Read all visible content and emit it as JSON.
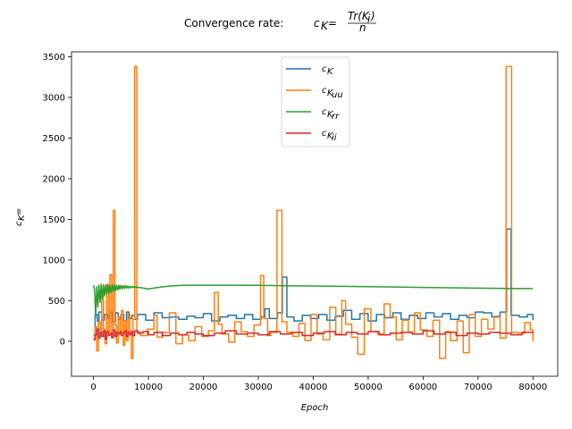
{
  "chart_data": {
    "type": "line",
    "title": "Convergence rate: c_K = Tr(K_i)/n",
    "title_parts": {
      "prefix": "Convergence rate: ",
      "lhs": "c",
      "lhs_sub": "K",
      "eq": " = ",
      "num": "Tr(K",
      "num_sub": "i",
      "num_close": ")",
      "den": "n"
    },
    "xlabel": "Epoch",
    "ylabel": "c_K =",
    "ylabel_parts": {
      "c": "c",
      "sub": "K",
      "eq": " ="
    },
    "xlim": [
      -4000,
      84500
    ],
    "ylim": [
      -430,
      3560
    ],
    "xticks": [
      0,
      10000,
      20000,
      30000,
      40000,
      50000,
      60000,
      70000,
      80000
    ],
    "xtick_labels": [
      "0",
      "10000",
      "20000",
      "30000",
      "40000",
      "50000",
      "60000",
      "70000",
      "80000"
    ],
    "yticks": [
      0,
      500,
      1000,
      1500,
      2000,
      2500,
      3000,
      3500
    ],
    "ytick_labels": [
      "0",
      "500",
      "1000",
      "1500",
      "2000",
      "2500",
      "3000",
      "3500"
    ],
    "grid": false,
    "legend_position": "top-center",
    "series": [
      {
        "name": "c_K",
        "label_main": "c",
        "label_sub": "K",
        "color": "#1f77b4",
        "step": true,
        "x": [
          0,
          300,
          700,
          1000,
          1500,
          2000,
          2500,
          3000,
          3500,
          4000,
          4500,
          5000,
          5500,
          6000,
          6500,
          7000,
          7500,
          8000,
          9500,
          11000,
          12500,
          14000,
          15500,
          17000,
          18500,
          20000,
          21500,
          23000,
          24500,
          26000,
          27500,
          29000,
          30500,
          31200,
          32000,
          33500,
          34400,
          35200,
          36500,
          38000,
          39500,
          41000,
          42500,
          44000,
          45500,
          47000,
          48500,
          50000,
          51500,
          53000,
          54500,
          56000,
          57500,
          59000,
          60500,
          62000,
          63500,
          65000,
          66500,
          68000,
          69500,
          71000,
          72500,
          74000,
          75200,
          76000,
          77500,
          79000,
          80000
        ],
        "y": [
          80,
          330,
          250,
          360,
          260,
          330,
          280,
          360,
          240,
          350,
          270,
          330,
          250,
          360,
          280,
          320,
          270,
          330,
          260,
          350,
          290,
          300,
          270,
          310,
          290,
          340,
          250,
          300,
          320,
          280,
          330,
          270,
          300,
          400,
          280,
          350,
          790,
          300,
          250,
          320,
          280,
          330,
          260,
          310,
          380,
          270,
          340,
          250,
          330,
          290,
          350,
          270,
          320,
          280,
          350,
          300,
          340,
          270,
          320,
          290,
          360,
          350,
          300,
          360,
          1380,
          320,
          300,
          330,
          260
        ]
      },
      {
        "name": "c_Kuu",
        "label_main": "c",
        "label_sub": "K",
        "label_subsub": "uu",
        "color": "#ff7f0e",
        "step": true,
        "x": [
          0,
          300,
          600,
          900,
          1200,
          1500,
          1800,
          2100,
          2400,
          2700,
          3000,
          3300,
          3600,
          3900,
          4200,
          4500,
          4800,
          5100,
          5400,
          5700,
          6000,
          6300,
          6600,
          6900,
          7200,
          7500,
          7900,
          8500,
          9800,
          11000,
          11600,
          12600,
          13800,
          15000,
          16200,
          17300,
          18500,
          19700,
          20900,
          22000,
          22700,
          23400,
          24600,
          25700,
          26900,
          28000,
          29200,
          30400,
          31000,
          31700,
          32300,
          33400,
          34300,
          35200,
          36300,
          37400,
          38500,
          39600,
          40700,
          41800,
          43000,
          44100,
          45200,
          45900,
          47000,
          48100,
          49300,
          50500,
          51700,
          52900,
          54000,
          55100,
          56200,
          57300,
          58400,
          59500,
          60700,
          61800,
          63000,
          64100,
          65000,
          66200,
          67300,
          68400,
          69500,
          70600,
          71800,
          72900,
          74000,
          75100,
          76100,
          77300,
          78500,
          79500,
          80000
        ],
        "y": [
          30,
          180,
          -120,
          240,
          60,
          620,
          150,
          -30,
          700,
          120,
          820,
          40,
          1610,
          200,
          -20,
          300,
          90,
          380,
          -50,
          250,
          10,
          340,
          110,
          -210,
          270,
          3380,
          120,
          70,
          150,
          320,
          50,
          110,
          350,
          -30,
          80,
          10,
          180,
          60,
          130,
          600,
          210,
          90,
          -10,
          240,
          120,
          60,
          200,
          810,
          280,
          70,
          110,
          1610,
          240,
          110,
          60,
          220,
          10,
          330,
          90,
          20,
          420,
          90,
          500,
          210,
          50,
          -160,
          400,
          120,
          90,
          460,
          300,
          20,
          260,
          110,
          350,
          140,
          60,
          260,
          -210,
          120,
          10,
          250,
          -140,
          330,
          60,
          270,
          150,
          310,
          40,
          3380,
          110,
          100,
          230,
          140,
          0
        ]
      },
      {
        "name": "c_Krr",
        "label_main": "c",
        "label_sub": "K",
        "label_subsub": "rr",
        "color": "#2ca02c",
        "step": false,
        "x": [
          0,
          200,
          400,
          600,
          800,
          1000,
          1200,
          1400,
          1600,
          1800,
          2000,
          2200,
          2400,
          2600,
          2800,
          3000,
          3200,
          3400,
          3600,
          3800,
          4000,
          4200,
          4400,
          4600,
          4800,
          5000,
          5200,
          5400,
          5600,
          5800,
          6000,
          6200,
          6400,
          6600,
          6800,
          7000,
          7200,
          7400,
          7600,
          7800,
          8000,
          8500,
          9000,
          9500,
          10000,
          12000,
          14000,
          16000,
          18000,
          20000,
          25000,
          30000,
          35000,
          40000,
          45000,
          50000,
          55000,
          60000,
          65000,
          70000,
          75000,
          80000
        ],
        "y": [
          690,
          640,
          310,
          670,
          420,
          690,
          480,
          700,
          530,
          695,
          560,
          690,
          580,
          690,
          590,
          690,
          600,
          690,
          610,
          690,
          620,
          690,
          630,
          690,
          640,
          690,
          645,
          685,
          650,
          685,
          655,
          680,
          655,
          678,
          658,
          676,
          660,
          674,
          660,
          672,
          662,
          660,
          655,
          650,
          645,
          665,
          680,
          688,
          690,
          690,
          690,
          688,
          684,
          680,
          676,
          672,
          668,
          663,
          658,
          654,
          651,
          648
        ]
      },
      {
        "name": "c_Kii",
        "label_main": "c",
        "label_sub": "K",
        "label_subsub": "ii",
        "color": "#d62728",
        "step": true,
        "x": [
          0,
          300,
          600,
          900,
          1200,
          1500,
          1800,
          2100,
          2400,
          2700,
          3000,
          3300,
          3600,
          3900,
          4200,
          4500,
          4800,
          5100,
          5400,
          5700,
          6000,
          6300,
          6600,
          6900,
          7200,
          7500,
          8000,
          9000,
          10000,
          11000,
          12500,
          14000,
          15500,
          17000,
          18500,
          20000,
          22000,
          24000,
          26000,
          28000,
          30000,
          32000,
          34000,
          36000,
          38000,
          40000,
          42000,
          44000,
          46000,
          48000,
          50000,
          52000,
          54000,
          56000,
          58000,
          60000,
          62000,
          64000,
          66000,
          68000,
          70000,
          72000,
          74000,
          76000,
          78000,
          80000
        ],
        "y": [
          20,
          80,
          150,
          40,
          110,
          60,
          130,
          30,
          120,
          70,
          100,
          50,
          140,
          60,
          110,
          90,
          120,
          70,
          100,
          130,
          60,
          110,
          80,
          120,
          70,
          130,
          100,
          120,
          80,
          110,
          70,
          100,
          80,
          110,
          90,
          70,
          100,
          130,
          90,
          100,
          80,
          120,
          90,
          110,
          70,
          100,
          120,
          80,
          110,
          90,
          120,
          80,
          100,
          110,
          90,
          130,
          90,
          110,
          70,
          100,
          90,
          110,
          100,
          80,
          110,
          100
        ]
      }
    ]
  }
}
